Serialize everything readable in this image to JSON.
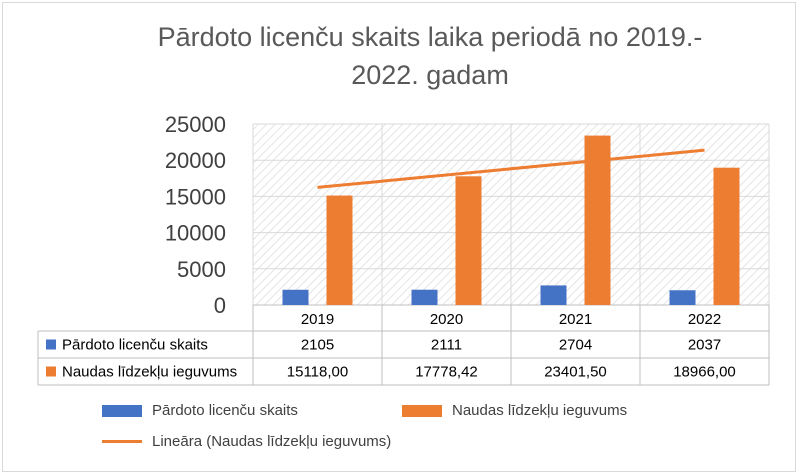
{
  "chart_data": {
    "type": "bar",
    "title": "Pārdoto licenču skaits laika periodā no 2019.-2022. gadam",
    "title_line1": "Pārdoto licenču skaits laika periodā no 2019.-",
    "title_line2": "2022. gadam",
    "categories": [
      "2019",
      "2020",
      "2021",
      "2022"
    ],
    "ylim": [
      0,
      25000
    ],
    "yticks": [
      "0",
      "5000",
      "10000",
      "15000",
      "20000",
      "25000"
    ],
    "grid": true,
    "legend_position": "bottom",
    "series": [
      {
        "name": "Pārdoto licenču skaits",
        "color": "#4472c4",
        "values": [
          2105,
          2111,
          2704,
          2037
        ],
        "table_values": [
          "2105",
          "2111",
          "2704",
          "2037"
        ]
      },
      {
        "name": "Naudas līdzekļu ieguvums",
        "color": "#ed7d31",
        "values": [
          15118.0,
          17778.42,
          23401.5,
          18966.0
        ],
        "table_values": [
          "15118,00",
          "17778,42",
          "23401,50",
          "18966,00"
        ]
      }
    ],
    "trendline": {
      "name": "Lineāra (Naudas līdzekļu ieguvums)",
      "color": "#ed7d31",
      "type": "linear",
      "of_series": "Naudas līdzekļu ieguvums"
    }
  }
}
